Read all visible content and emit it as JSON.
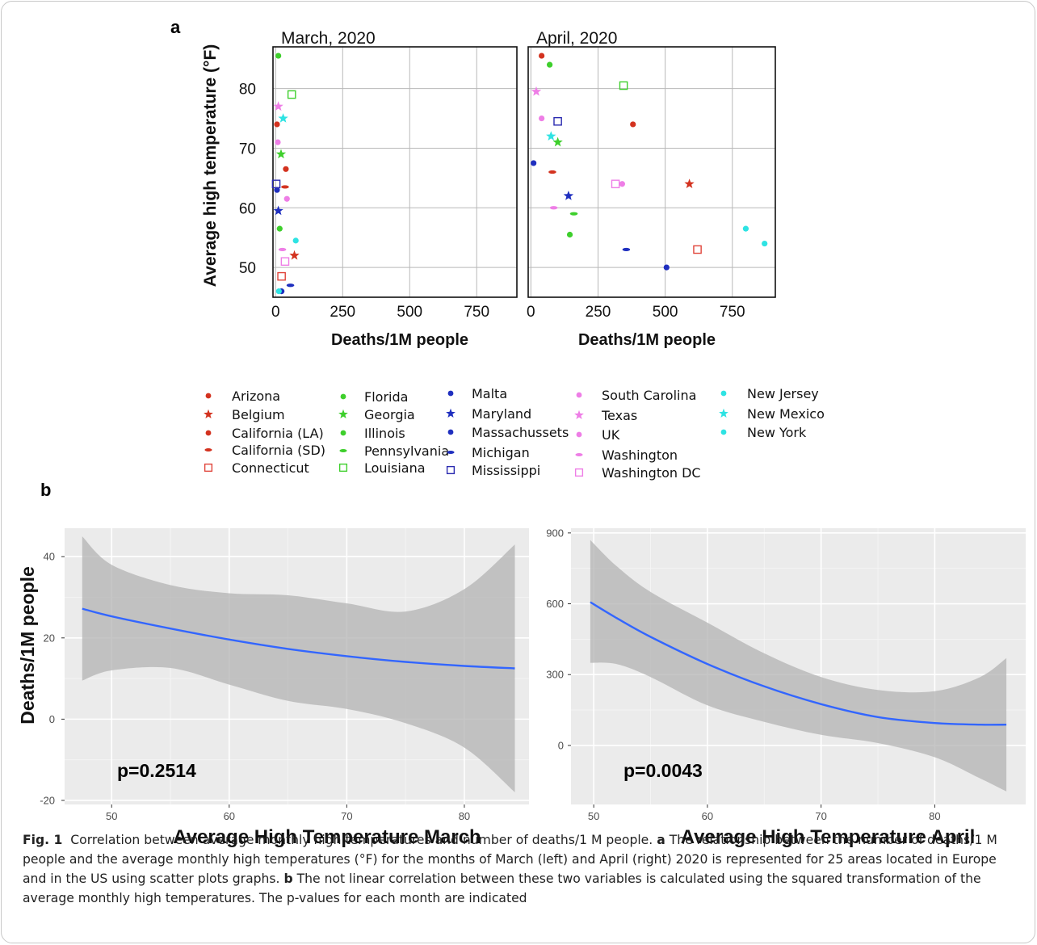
{
  "panel_letters": {
    "a": "a",
    "b": "b"
  },
  "caption": {
    "fig_label": "Fig. 1",
    "text_1": "Correlation between average monthly high temperatures and number of deaths/1 M people.",
    "a_label": "a",
    "text_2": "The relationship between the number of deaths/1 M people and the average monthly high temperatures (°F) for the months of March (left) and April (right) 2020 is represented for 25 areas located in Europe and in the US using scatter plots graphs.",
    "b_label": "b",
    "text_3": "The not linear correlation between these two variables is calculated using the squared transformation of the average monthly high temperatures. The p-values for each month are indicated"
  },
  "legend": [
    {
      "name": "Arizona",
      "color": "#d3321f",
      "marker": "circle"
    },
    {
      "name": "Belgium",
      "color": "#d3321f",
      "marker": "star"
    },
    {
      "name": "California (LA)",
      "color": "#d3321f",
      "marker": "circle"
    },
    {
      "name": "California (SD)",
      "color": "#d3321f",
      "marker": "dash"
    },
    {
      "name": "Connecticut",
      "color": "#e0443a",
      "marker": "square"
    },
    {
      "name": "Florida",
      "color": "#3ecf2c",
      "marker": "circle"
    },
    {
      "name": "Georgia",
      "color": "#3ecf2c",
      "marker": "star"
    },
    {
      "name": "Illinois",
      "color": "#3ecf2c",
      "marker": "circle"
    },
    {
      "name": "Pennsylvania",
      "color": "#3ecf2c",
      "marker": "dash"
    },
    {
      "name": "Louisiana",
      "color": "#3ecf2c",
      "marker": "square"
    },
    {
      "name": "Malta",
      "color": "#1f2fbf",
      "marker": "circle"
    },
    {
      "name": "Maryland",
      "color": "#1f2fbf",
      "marker": "star"
    },
    {
      "name": "Massachussets",
      "color": "#1f2fbf",
      "marker": "circle"
    },
    {
      "name": "Michigan",
      "color": "#1f2fbf",
      "marker": "dash"
    },
    {
      "name": "Mississippi",
      "color": "#2a2ab0",
      "marker": "square"
    },
    {
      "name": "South Carolina",
      "color": "#ee7ee6",
      "marker": "circle"
    },
    {
      "name": "Texas",
      "color": "#ee7ee6",
      "marker": "star"
    },
    {
      "name": "UK",
      "color": "#ee7ee6",
      "marker": "circle"
    },
    {
      "name": "Washington",
      "color": "#ee7ee6",
      "marker": "dash"
    },
    {
      "name": "Washington DC",
      "color": "#ee7ee6",
      "marker": "square"
    },
    {
      "name": "New Jersey",
      "color": "#2ee3e3",
      "marker": "circle"
    },
    {
      "name": "New Mexico",
      "color": "#2ee3e3",
      "marker": "star"
    },
    {
      "name": "New York",
      "color": "#2ee3e3",
      "marker": "circle"
    }
  ],
  "chart_data": [
    {
      "id": "a-march",
      "type": "scatter",
      "title": "March, 2020",
      "xlabel": "Deaths/1M people",
      "ylabel": "Average high temperature (°F)",
      "xlim": [
        -10,
        900
      ],
      "ylim": [
        45,
        87
      ],
      "xticks": [
        0,
        250,
        500,
        750
      ],
      "yticks": [
        50,
        60,
        70,
        80
      ],
      "grid": true,
      "points": [
        {
          "series": "Arizona",
          "x": 5,
          "y": 74
        },
        {
          "series": "Belgium",
          "x": 70,
          "y": 52
        },
        {
          "series": "California (LA)",
          "x": 38,
          "y": 66.5
        },
        {
          "series": "California (SD)",
          "x": 35,
          "y": 63.5
        },
        {
          "series": "Connecticut",
          "x": 22,
          "y": 48.5
        },
        {
          "series": "Florida",
          "x": 10,
          "y": 85.5
        },
        {
          "series": "Georgia",
          "x": 20,
          "y": 69
        },
        {
          "series": "Illinois",
          "x": 15,
          "y": 56.5
        },
        {
          "series": "Pennsylvania",
          "x": 18,
          "y": 46
        },
        {
          "series": "Louisiana",
          "x": 60,
          "y": 79
        },
        {
          "series": "Malta",
          "x": 5,
          "y": 63
        },
        {
          "series": "Maryland",
          "x": 10,
          "y": 59.5
        },
        {
          "series": "Massachussets",
          "x": 22,
          "y": 46
        },
        {
          "series": "Michigan",
          "x": 55,
          "y": 47
        },
        {
          "series": "Mississippi",
          "x": 2,
          "y": 64
        },
        {
          "series": "South Carolina",
          "x": 8,
          "y": 71
        },
        {
          "series": "Texas",
          "x": 10,
          "y": 77
        },
        {
          "series": "UK",
          "x": 42,
          "y": 61.5
        },
        {
          "series": "Washington",
          "x": 25,
          "y": 53
        },
        {
          "series": "Washington DC",
          "x": 35,
          "y": 51
        },
        {
          "series": "New Jersey",
          "x": 75,
          "y": 54.5
        },
        {
          "series": "New Mexico",
          "x": 28,
          "y": 75
        },
        {
          "series": "New York",
          "x": 12,
          "y": 46
        }
      ]
    },
    {
      "id": "a-april",
      "type": "scatter",
      "title": "April, 2020",
      "xlabel": "Deaths/1M people",
      "ylabel": "",
      "xlim": [
        -10,
        910
      ],
      "ylim": [
        45,
        87
      ],
      "xticks": [
        0,
        250,
        500,
        750
      ],
      "yticks": [
        50,
        60,
        70,
        80
      ],
      "grid": true,
      "points": [
        {
          "series": "Arizona",
          "x": 40,
          "y": 85.5
        },
        {
          "series": "Belgium",
          "x": 590,
          "y": 64
        },
        {
          "series": "California (LA)",
          "x": 380,
          "y": 74
        },
        {
          "series": "California (SD)",
          "x": 80,
          "y": 66
        },
        {
          "series": "Connecticut",
          "x": 620,
          "y": 53
        },
        {
          "series": "Florida",
          "x": 70,
          "y": 84
        },
        {
          "series": "Georgia",
          "x": 100,
          "y": 71
        },
        {
          "series": "Illinois",
          "x": 145,
          "y": 55.5
        },
        {
          "series": "Pennsylvania",
          "x": 160,
          "y": 59
        },
        {
          "series": "Louisiana",
          "x": 345,
          "y": 80.5
        },
        {
          "series": "Malta",
          "x": 10,
          "y": 67.5
        },
        {
          "series": "Maryland",
          "x": 140,
          "y": 62
        },
        {
          "series": "Massachussets",
          "x": 505,
          "y": 50
        },
        {
          "series": "Michigan",
          "x": 355,
          "y": 53
        },
        {
          "series": "Mississippi",
          "x": 100,
          "y": 74.5
        },
        {
          "series": "South Carolina",
          "x": 40,
          "y": 75
        },
        {
          "series": "Texas",
          "x": 20,
          "y": 79.5
        },
        {
          "series": "UK",
          "x": 340,
          "y": 64
        },
        {
          "series": "Washington",
          "x": 85,
          "y": 60
        },
        {
          "series": "Washington DC",
          "x": 315,
          "y": 64
        },
        {
          "series": "New Jersey",
          "x": 800,
          "y": 56.5
        },
        {
          "series": "New Mexico",
          "x": 75,
          "y": 72
        },
        {
          "series": "New York",
          "x": 870,
          "y": 54
        }
      ]
    },
    {
      "id": "b-march",
      "type": "line",
      "title": "",
      "xlabel": "Average High Temperature March",
      "ylabel": "Deaths/1M people",
      "xlim": [
        46,
        85.5
      ],
      "ylim": [
        -21,
        47
      ],
      "xticks": [
        50,
        60,
        70,
        80
      ],
      "yticks": [
        -20,
        0,
        20,
        40
      ],
      "grid": true,
      "annotation": "p=0.2514",
      "fit": {
        "x": [
          47.5,
          50,
          55,
          60,
          65,
          70,
          75,
          80,
          84.3
        ],
        "y": [
          27.2,
          25.3,
          22.3,
          19.6,
          17.3,
          15.5,
          14.1,
          13.1,
          12.5
        ]
      },
      "ci_upper": {
        "x": [
          47.5,
          50,
          55,
          60,
          65,
          70,
          75,
          80,
          84.3
        ],
        "y": [
          45.0,
          38.0,
          33.0,
          31.0,
          30.5,
          28.5,
          26.5,
          32.0,
          43.0
        ]
      },
      "ci_lower": {
        "x": [
          47.5,
          50,
          55,
          60,
          65,
          70,
          75,
          80,
          84.3
        ],
        "y": [
          9.5,
          12.0,
          12.6,
          8.5,
          4.5,
          2.5,
          -1.0,
          -7.0,
          -18.0
        ]
      }
    },
    {
      "id": "b-april",
      "type": "line",
      "title": "",
      "xlabel": "Average High Temperature April",
      "ylabel": "",
      "xlim": [
        48,
        88
      ],
      "ylim": [
        -250,
        920
      ],
      "xticks": [
        50,
        60,
        70,
        80
      ],
      "yticks": [
        0,
        300,
        600,
        900
      ],
      "grid": true,
      "annotation": "p=0.0043",
      "fit": {
        "x": [
          49.7,
          52,
          55,
          60,
          65,
          70,
          75,
          80,
          84,
          86.3
        ],
        "y": [
          607,
          540,
          460,
          345,
          250,
          175,
          120,
          95,
          88,
          88
        ]
      },
      "ci_upper": {
        "x": [
          49.7,
          52,
          55,
          60,
          65,
          70,
          75,
          80,
          84,
          86.3
        ],
        "y": [
          870,
          760,
          650,
          520,
          390,
          290,
          235,
          230,
          290,
          370
        ]
      },
      "ci_lower": {
        "x": [
          49.7,
          52,
          55,
          60,
          65,
          70,
          75,
          80,
          84,
          86.3
        ],
        "y": [
          350,
          345,
          290,
          170,
          100,
          45,
          10,
          -50,
          -140,
          -195
        ]
      }
    }
  ]
}
